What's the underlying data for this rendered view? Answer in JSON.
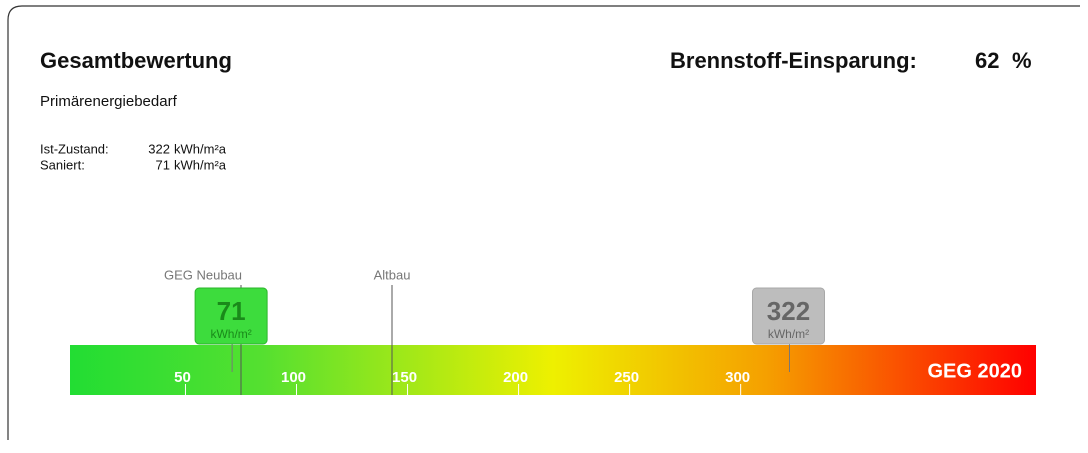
{
  "header": {
    "title": "Gesamtbewertung",
    "savings_label": "Brennstoff-Einsparung:",
    "savings_value": 62,
    "savings_unit": "%",
    "subtitle": "Primärenergiebedarf"
  },
  "summary": [
    {
      "label": "Ist-Zustand:",
      "value": 322,
      "unit": "kWh/m²a"
    },
    {
      "label": "Saniert:",
      "value": 71,
      "unit": "kWh/m²a"
    }
  ],
  "scale": {
    "label": "GEG 2020",
    "xlim": [
      -2,
      433
    ],
    "ticks": [
      50,
      100,
      150,
      200,
      250,
      300
    ],
    "references": [
      {
        "label": "GEG  Neubau",
        "value": 75
      },
      {
        "label": "Altbau",
        "value": 143
      }
    ],
    "markers": [
      {
        "value": 71,
        "unit": "kWh/m²",
        "color": "#3ddc3d",
        "text_color": "#1a8a1a"
      },
      {
        "value": 322,
        "unit": "kWh/m²",
        "color": "#bdbdbd",
        "text_color": "#666666"
      }
    ]
  }
}
